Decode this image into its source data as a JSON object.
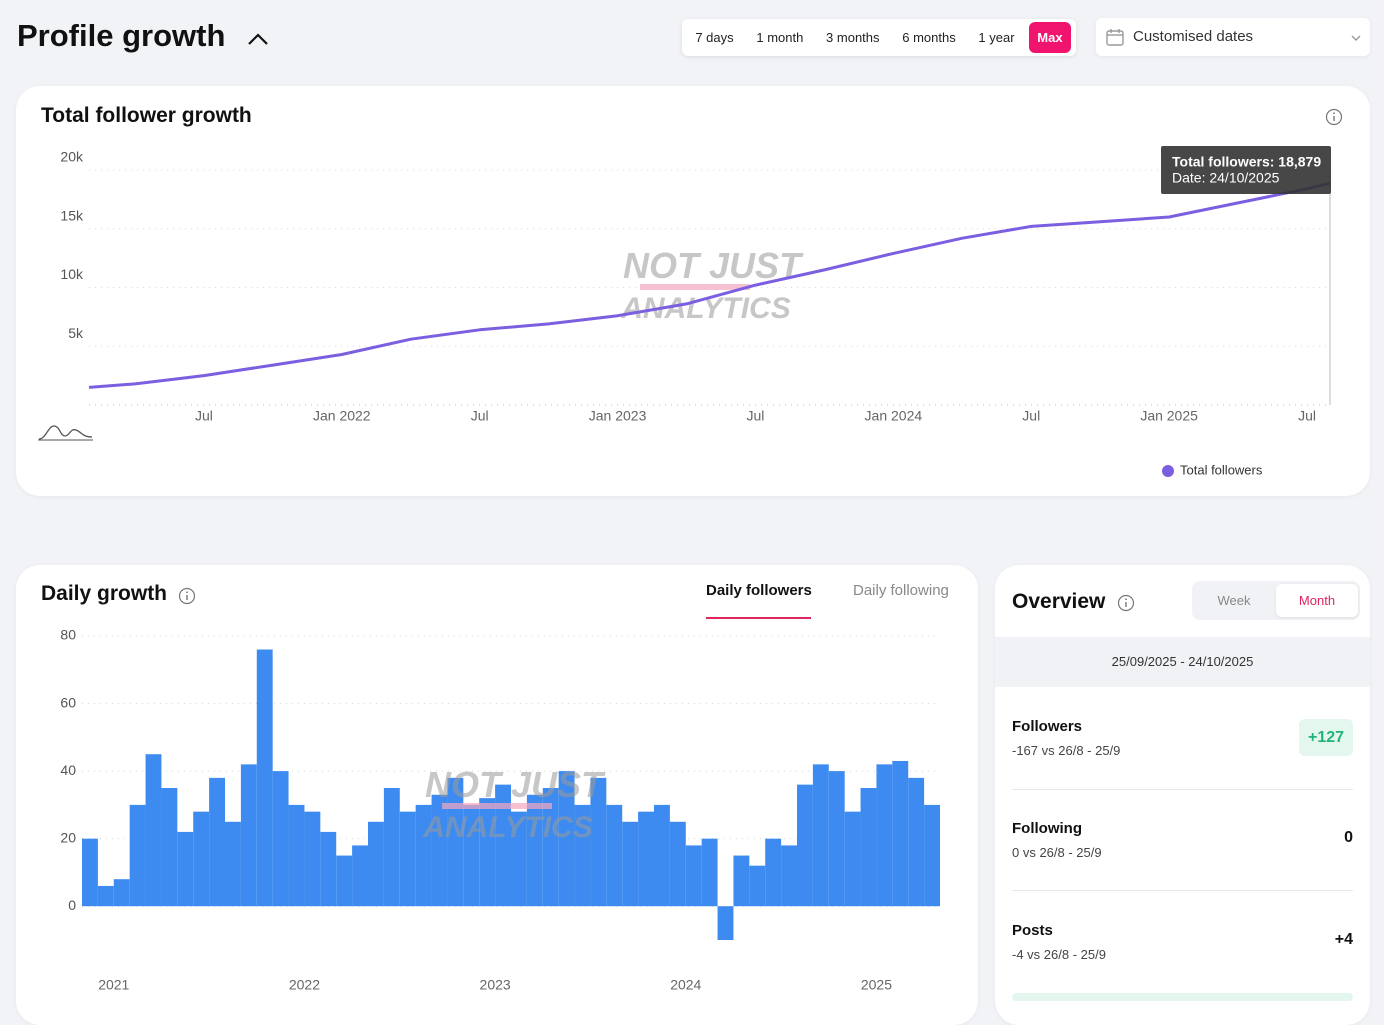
{
  "header": {
    "title": "Profile growth",
    "ranges": [
      "7 days",
      "1 month",
      "3 months",
      "6 months",
      "1 year",
      "Max"
    ],
    "date_picker": "Customised dates"
  },
  "watermark": [
    "NOT JUST",
    "ANALYTICS"
  ],
  "chart_data": [
    {
      "type": "line",
      "title": "Total follower growth",
      "x": [
        "2021-02",
        "2021-04",
        "2021-07",
        "2021-10",
        "2022-01",
        "2022-04",
        "2022-07",
        "2022-10",
        "2023-01",
        "2023-04",
        "2023-07",
        "2023-10",
        "2024-01",
        "2024-04",
        "2024-07",
        "2024-10",
        "2025-01",
        "2025-04",
        "2025-07",
        "2025-08"
      ],
      "series": [
        {
          "name": "Total followers",
          "color": "#7b5fe0",
          "values": [
            1500,
            1800,
            2500,
            3400,
            4300,
            5600,
            6400,
            6900,
            7600,
            8600,
            10200,
            11500,
            12900,
            14200,
            15200,
            15600,
            16000,
            17200,
            18400,
            18879
          ]
        }
      ],
      "xlim": [
        "2021-02",
        "2025-08"
      ],
      "xticks": [
        {
          "value": "2021-07",
          "label": "Jul"
        },
        {
          "value": "2022-01",
          "label": "Jan 2022"
        },
        {
          "value": "2022-07",
          "label": "Jul"
        },
        {
          "value": "2023-01",
          "label": "Jan 2023"
        },
        {
          "value": "2023-07",
          "label": "Jul"
        },
        {
          "value": "2024-01",
          "label": "Jan 2024"
        },
        {
          "value": "2024-07",
          "label": "Jul"
        },
        {
          "value": "2025-01",
          "label": "Jan 2025"
        },
        {
          "value": "2025-07",
          "label": "Jul"
        }
      ],
      "ylim": [
        0,
        20000
      ],
      "yticks": [
        {
          "value": 5000,
          "label": "5k"
        },
        {
          "value": 10000,
          "label": "10k"
        },
        {
          "value": 15000,
          "label": "15k"
        },
        {
          "value": 20000,
          "label": "20k"
        }
      ],
      "grid": true,
      "tooltip": [
        "Total followers: 18,879",
        "Date: 24/10/2025"
      ]
    },
    {
      "type": "bar",
      "title": "Daily growth",
      "tabs": [
        "Daily followers",
        "Daily following"
      ],
      "color": "#3d8bf0",
      "x": [
        "2021-02",
        "2021-03",
        "2021-04",
        "2021-05",
        "2021-06",
        "2021-07",
        "2021-08",
        "2021-09",
        "2021-10",
        "2021-11",
        "2021-12",
        "2022-01",
        "2022-02",
        "2022-03",
        "2022-04",
        "2022-05",
        "2022-06",
        "2022-07",
        "2022-08",
        "2022-09",
        "2022-10",
        "2022-11",
        "2022-12",
        "2023-01",
        "2023-02",
        "2023-03",
        "2023-04",
        "2023-05",
        "2023-06",
        "2023-07",
        "2023-08",
        "2023-09",
        "2023-10",
        "2023-11",
        "2023-12",
        "2024-01",
        "2024-02",
        "2024-03",
        "2024-04",
        "2024-05",
        "2024-06",
        "2024-07",
        "2024-08",
        "2024-09",
        "2024-10",
        "2024-11",
        "2024-12",
        "2025-01",
        "2025-02",
        "2025-03",
        "2025-04",
        "2025-05",
        "2025-06",
        "2025-07"
      ],
      "values": [
        20,
        6,
        8,
        30,
        45,
        35,
        22,
        28,
        38,
        25,
        42,
        76,
        40,
        30,
        28,
        22,
        15,
        18,
        25,
        35,
        28,
        30,
        33,
        38,
        30,
        32,
        36,
        28,
        33,
        35,
        40,
        30,
        38,
        30,
        25,
        28,
        30,
        25,
        18,
        20,
        -10,
        15,
        12,
        20,
        18,
        36,
        42,
        40,
        28,
        35,
        42,
        43,
        38,
        30
      ],
      "xlim": [
        "2021-02",
        "2025-08"
      ],
      "xticks": [
        {
          "value": "2021-04",
          "label": "2021"
        },
        {
          "value": "2022-04",
          "label": "2022"
        },
        {
          "value": "2023-04",
          "label": "2023"
        },
        {
          "value": "2024-04",
          "label": "2024"
        },
        {
          "value": "2025-04",
          "label": "2025"
        }
      ],
      "ylim": [
        -10,
        80
      ],
      "yticks": [
        0,
        20,
        40,
        60,
        80
      ],
      "grid": true
    }
  ],
  "overview": {
    "title": "Overview",
    "toggle": [
      "Week",
      "Month"
    ],
    "period": "25/09/2025 - 24/10/2025",
    "rows": [
      {
        "label": "Followers",
        "compare": "-167 vs 26/8 - 25/9",
        "change": "+127"
      },
      {
        "label": "Following",
        "compare": "0 vs 26/8 - 25/9",
        "change": "0"
      },
      {
        "label": "Posts",
        "compare": "-4 vs 26/8 - 25/9",
        "change": "+4"
      }
    ]
  }
}
